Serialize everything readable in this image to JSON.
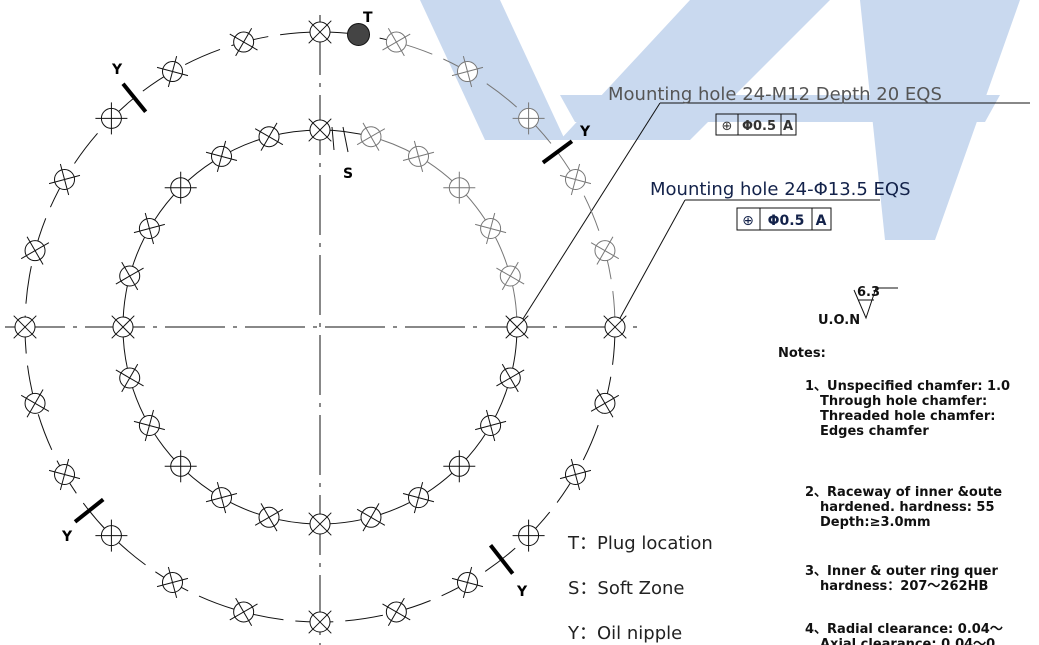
{
  "labels": {
    "plug": "T",
    "soft": "S",
    "nipples": [
      "Y",
      "Y",
      "Y",
      "Y"
    ]
  },
  "callouts": [
    {
      "text": "Mounting hole 24-M12 Depth 20 EQS",
      "tolerance": {
        "symbol": "⊕",
        "value": "Φ0.5",
        "datum": "A"
      }
    },
    {
      "text": "Mounting hole 24-Φ13.5 EQS",
      "tolerance": {
        "symbol": "⊕",
        "value": "Φ0.5",
        "datum": "A"
      }
    }
  ],
  "surface_finish": {
    "label": "U.O.N",
    "value": "6.3"
  },
  "notes": {
    "title": "Notes:",
    "items": [
      [
        "1、Unspecified chamfer: 1.0",
        "Through hole chamfer:",
        "Threaded hole chamfer:",
        "Edges chamfer"
      ],
      [
        "2、Raceway of inner &oute",
        "hardened. hardness: 55",
        "Depth:≥3.0mm"
      ],
      [
        "3、Inner & outer ring quer",
        "hardness：207～262HB"
      ],
      [
        "4、Radial clearance: 0.04～",
        "Axial clearance: 0.04～0"
      ]
    ]
  },
  "legend": [
    "T：Plug location",
    "S：Soft Zone",
    "Y：Oil nipple"
  ]
}
